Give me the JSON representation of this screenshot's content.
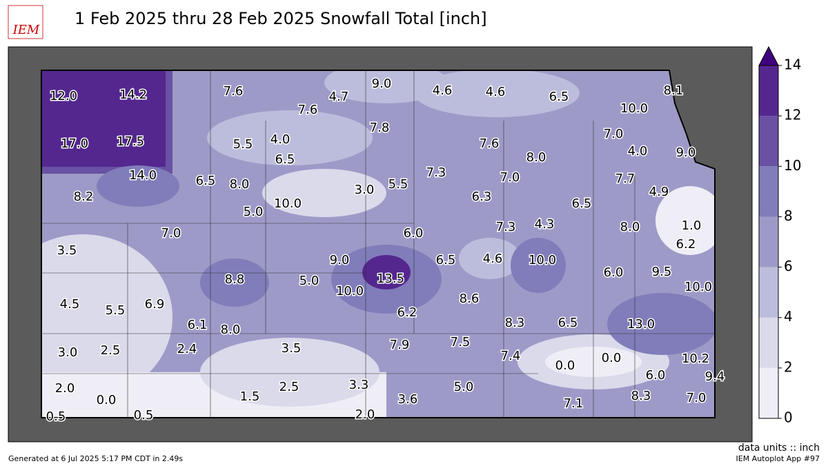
{
  "header": {
    "logo": "IEM",
    "title": "1 Feb 2025 thru 28 Feb 2025 Snowfall Total [inch]"
  },
  "stations": [
    "12.0",
    "14.2",
    "7.6",
    "4.7",
    "9.0",
    "4.6",
    "4.6",
    "6.5",
    "8.1",
    "7.6",
    "10.0",
    "7.8",
    "17.0",
    "17.5",
    "5.5",
    "4.0",
    "7.6",
    "7.0",
    "4.0",
    "9.0",
    "8.0",
    "6.5",
    "7.3",
    "14.0",
    "6.5",
    "8.0",
    "3.0",
    "5.5",
    "7.0",
    "7.7",
    "4.9",
    "8.2",
    "10.0",
    "6.3",
    "6.5",
    "5.0",
    "7.3",
    "4.3",
    "8.0",
    "1.0",
    "7.0",
    "6.0",
    "3.5",
    "6.2",
    "9.0",
    "6.5",
    "4.6",
    "10.0",
    "13.5",
    "8.8",
    "5.0",
    "6.0",
    "9.5",
    "10.0",
    "10.0",
    "8.6",
    "4.5",
    "6.9",
    "5.5",
    "6.2",
    "6.1",
    "8.0",
    "8.3",
    "6.5",
    "13.0",
    "3.5",
    "7.9",
    "7.5",
    "3.0",
    "2.5",
    "2.4",
    "7.4",
    "0.0",
    "0.0",
    "10.2",
    "6.0",
    "9.4",
    "2.0",
    "0.0",
    "3.3",
    "5.0",
    "1.5",
    "2.5",
    "3.6",
    "7.1",
    "8.3",
    "7.0",
    "0.5",
    "0.5",
    "2.0"
  ],
  "colorbar": {
    "ticks": [
      0,
      2,
      4,
      6,
      8,
      10,
      12,
      14
    ],
    "colors": [
      "#efedf5",
      "#dadaeb",
      "#bcbddc",
      "#9e9ac8",
      "#807dba",
      "#6a51a3",
      "#54278f"
    ],
    "over_color": "#3f007d"
  },
  "footer": {
    "units": "data units :: inch",
    "generated": "Generated at 6 Jul 2025 5:17 PM CDT in 2.49s",
    "app": "IEM Autoplot App #97"
  }
}
